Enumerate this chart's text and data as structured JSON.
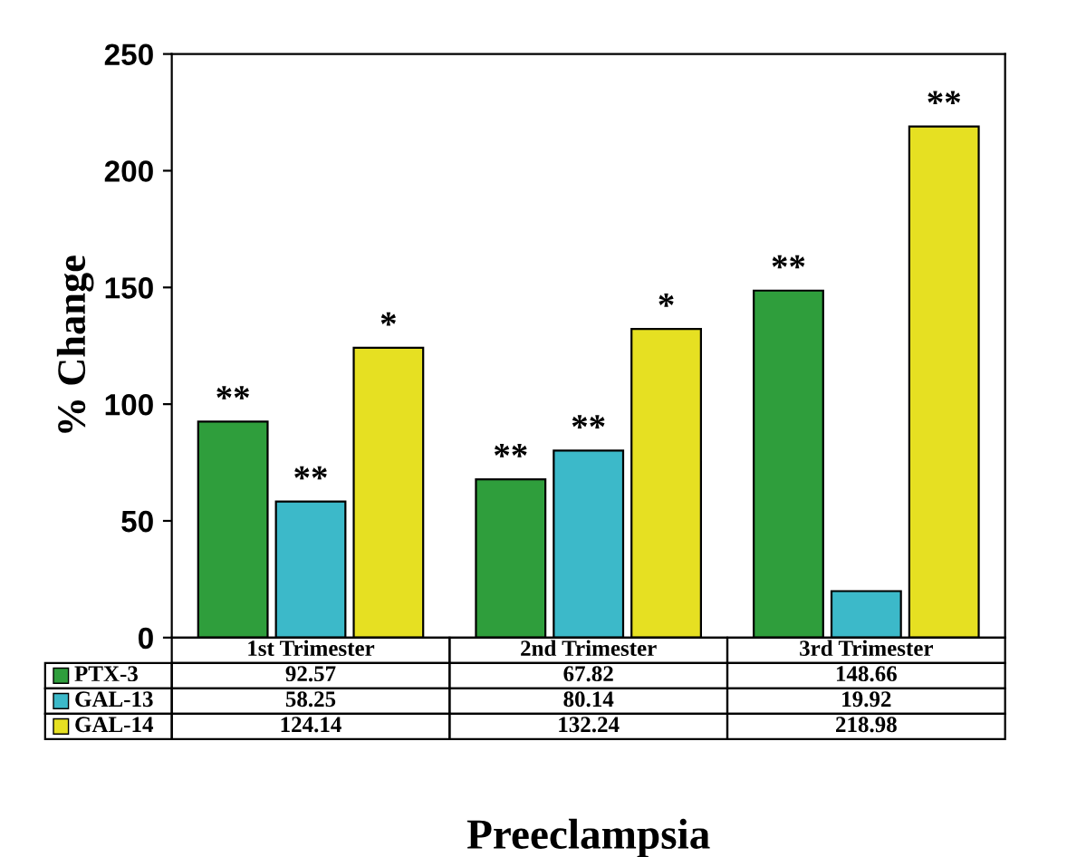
{
  "chart_data": {
    "type": "bar",
    "xlabel": "Preeclampsia",
    "ylabel": "% Change",
    "categories": [
      "1st Trimester",
      "2nd Trimester",
      "3rd Trimester"
    ],
    "series": [
      {
        "name": "PTX-3",
        "color": "#2f9e3c",
        "values": [
          92.57,
          67.82,
          148.66
        ]
      },
      {
        "name": "GAL-13",
        "color": "#3cb9c9",
        "values": [
          58.25,
          80.14,
          19.92
        ]
      },
      {
        "name": "GAL-14",
        "color": "#e6e022",
        "values": [
          124.14,
          132.24,
          218.98
        ]
      }
    ],
    "ylim": [
      0,
      250
    ],
    "yticks": [
      0,
      50,
      100,
      150,
      200,
      250
    ],
    "grid": false,
    "data_labels": true,
    "legend": "bottom left",
    "annotations": [
      "**",
      "**",
      "**",
      "**",
      "**",
      "*",
      "*",
      "**"
    ]
  }
}
